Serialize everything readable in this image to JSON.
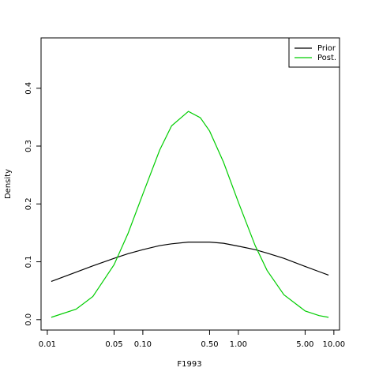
{
  "chart_data": {
    "type": "line",
    "x_label": "F1993",
    "y_label": "Density",
    "log_x": true,
    "x": [
      0.011,
      0.02,
      0.03,
      0.05,
      0.07,
      0.1,
      0.15,
      0.2,
      0.3,
      0.4,
      0.5,
      0.7,
      1,
      1.5,
      2,
      3,
      5,
      7,
      8.8
    ],
    "series": [
      {
        "name": "Prior",
        "color": "#000000",
        "values": [
          0.066,
          0.082,
          0.093,
          0.106,
          0.114,
          0.121,
          0.128,
          0.131,
          0.134,
          0.134,
          0.134,
          0.132,
          0.127,
          0.121,
          0.115,
          0.106,
          0.092,
          0.083,
          0.077
        ]
      },
      {
        "name": "Post.",
        "color": "#00cd00",
        "values": [
          0.004,
          0.018,
          0.04,
          0.095,
          0.149,
          0.217,
          0.293,
          0.335,
          0.36,
          0.349,
          0.326,
          0.272,
          0.203,
          0.128,
          0.085,
          0.043,
          0.015,
          0.007,
          0.004
        ]
      }
    ],
    "xlim": [
      0.0086,
      11.46
    ],
    "ylim": [
      -0.018,
      0.487
    ],
    "xticks": [
      0.01,
      0.05,
      {
        "value": 0.1,
        "label": "0.10"
      },
      {
        "value": 0.5,
        "label": "0.50"
      },
      {
        "value": 1,
        "label": "1.00"
      },
      {
        "value": 5,
        "label": "5.00"
      },
      {
        "value": 10,
        "label": "10.00"
      }
    ],
    "yticks": [
      {
        "value": 0,
        "label": "0.0"
      },
      0.1,
      0.2,
      0.3,
      0.4
    ],
    "legend": "top-right"
  }
}
